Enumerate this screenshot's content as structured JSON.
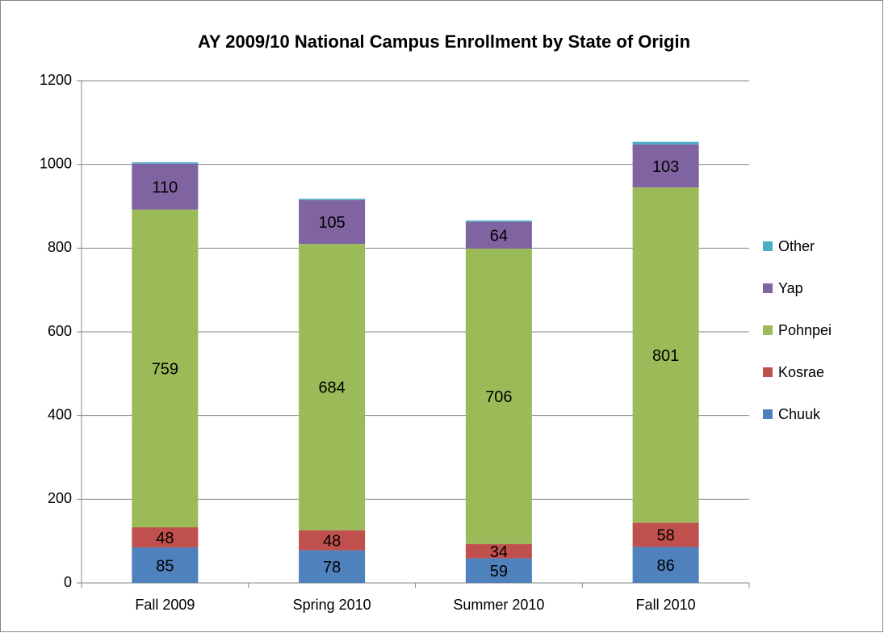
{
  "chart_data": {
    "type": "stacked_bar",
    "title": "AY 2009/10 National Campus Enrollment by State of Origin",
    "categories": [
      "Fall 2009",
      "Spring 2010",
      "Summer 2010",
      "Fall 2010"
    ],
    "series": [
      {
        "name": "Chuuk",
        "color": "#4f81bd",
        "values": [
          85,
          78,
          59,
          86
        ]
      },
      {
        "name": "Kosrae",
        "color": "#c0504d",
        "values": [
          48,
          48,
          34,
          58
        ]
      },
      {
        "name": "Pohnpei",
        "color": "#9bbb59",
        "values": [
          759,
          684,
          706,
          801
        ]
      },
      {
        "name": "Yap",
        "color": "#8064a2",
        "values": [
          110,
          105,
          64,
          103
        ]
      },
      {
        "name": "Other",
        "color": "#4bacc6",
        "values": [
          3,
          3,
          3,
          6
        ]
      }
    ],
    "ylim": [
      0,
      1200
    ],
    "yticks": [
      0,
      200,
      400,
      600,
      800,
      1000,
      1200
    ],
    "grid": true,
    "legend": "right"
  }
}
